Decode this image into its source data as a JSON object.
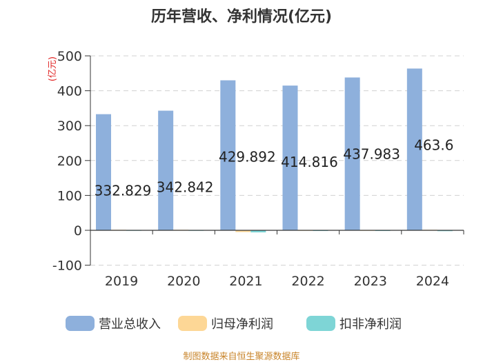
{
  "page": {
    "title": "历年营收、净利情况(亿元)",
    "source": "制图数据来自恒生聚源数据库"
  },
  "chart_data": {
    "type": "bar",
    "title": "历年营收、净利情况(亿元)",
    "ylabel": "(亿元)",
    "xlabel": "",
    "ylim": [
      -100,
      500
    ],
    "yticks": [
      -100,
      0,
      100,
      200,
      300,
      400,
      500
    ],
    "categories": [
      "2019",
      "2020",
      "2021",
      "2022",
      "2023",
      "2024"
    ],
    "grid": true,
    "legend_position": "bottom",
    "series": [
      {
        "name": "营业总收入",
        "color": "#8eb0dc",
        "values": [
          332.829,
          342.842,
          429.892,
          414.816,
          437.983,
          463.6
        ],
        "labels": [
          "332.829",
          "342.842",
          "429.892",
          "414.816",
          "437.983",
          "463.6"
        ]
      },
      {
        "name": "归母净利润",
        "color": "#fdd796",
        "values": [
          1.5,
          1.5,
          -5,
          0.5,
          0.5,
          1.5
        ]
      },
      {
        "name": "扣非净利润",
        "color": "#7ed5d6",
        "values": [
          0.5,
          0.5,
          -6,
          -0.5,
          -0.5,
          -2.5
        ]
      }
    ]
  }
}
